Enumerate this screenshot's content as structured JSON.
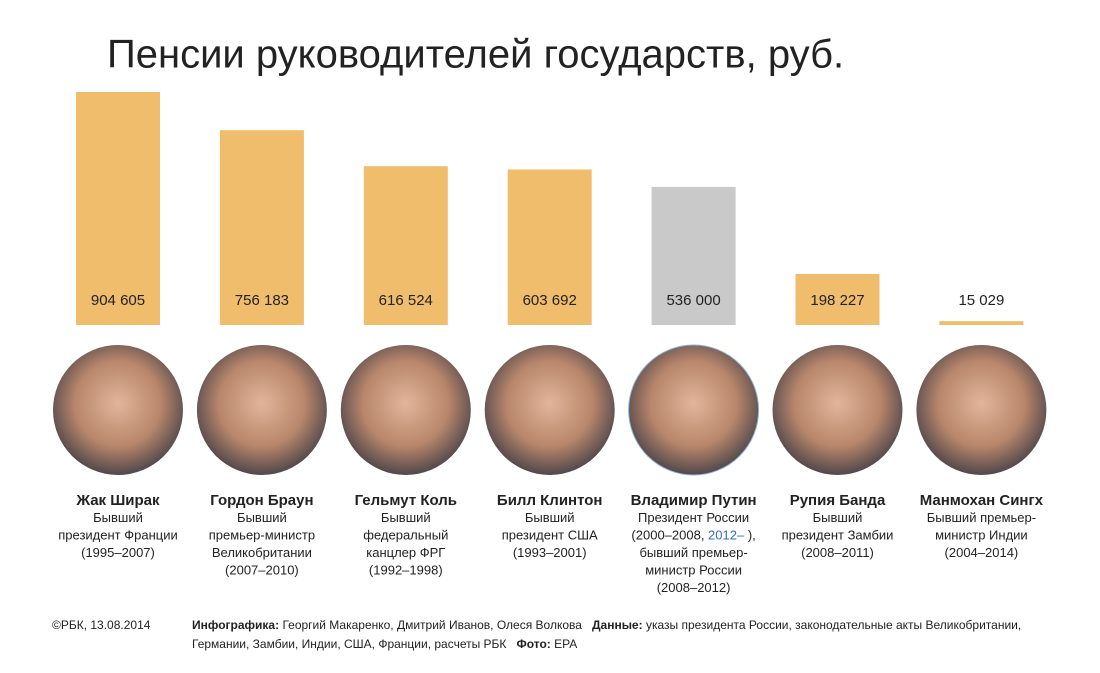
{
  "chart_data": {
    "type": "bar",
    "title": "Пенсии руководителей государств, руб.",
    "categories": [
      "Жак Ширак",
      "Гордон Браун",
      "Гельмут Коль",
      "Билл Клинтон",
      "Владимир Путин",
      "Рупия Банда",
      "Манмохан Сингх"
    ],
    "values": [
      904605,
      756183,
      616524,
      603692,
      536000,
      198227,
      15029
    ],
    "value_labels": [
      "904 605",
      "756 183",
      "616 524",
      "603 692",
      "536 000",
      "198 227",
      "15 029"
    ],
    "colors": [
      "#f0bd6c",
      "#f0bd6c",
      "#f0bd6c",
      "#f0bd6c",
      "#c9c9c9",
      "#f0bd6c",
      "#f0bd6c"
    ],
    "descriptions": [
      [
        [
          "Бывший"
        ],
        [
          "президент Франции"
        ],
        [
          "(1995–2007)"
        ]
      ],
      [
        [
          "Бывший"
        ],
        [
          "премьер-министр"
        ],
        [
          "Великобритании"
        ],
        [
          "(2007–2010)"
        ]
      ],
      [
        [
          "Бывший"
        ],
        [
          "федеральный"
        ],
        [
          "канцлер ФРГ"
        ],
        [
          "(1992–1998)"
        ]
      ],
      [
        [
          "Бывший"
        ],
        [
          "президент США"
        ],
        [
          "(1993–2001)"
        ]
      ],
      [
        [
          "Президент России"
        ],
        [
          "(2000–2008, ",
          {
            "text": "2012–",
            "color": "#2f6fc0"
          },
          " ),"
        ],
        [
          "бывший премьер-"
        ],
        [
          "министр России"
        ],
        [
          "(2008–2012)"
        ]
      ],
      [
        [
          "Бывший"
        ],
        [
          "президент Замбии"
        ],
        [
          "(2008–2011)"
        ]
      ],
      [
        [
          "Бывший премьер-"
        ],
        [
          "министр Индии"
        ],
        [
          "(2004–2014)"
        ]
      ]
    ]
  },
  "footer": {
    "copyright": "©РБК, 13.08.2014",
    "infographics_label": "Инфографика:",
    "infographics": " Георгий Макаренко, Дмитрий Иванов, Олеся Волкова",
    "data_label": "Данные:",
    "data": " указы президента России, законодательные акты Великобритании, Германии, Замбии, Индии, США, Франции, расчеты РБК",
    "photo_label": "Фото:",
    "photo": " EPA"
  }
}
